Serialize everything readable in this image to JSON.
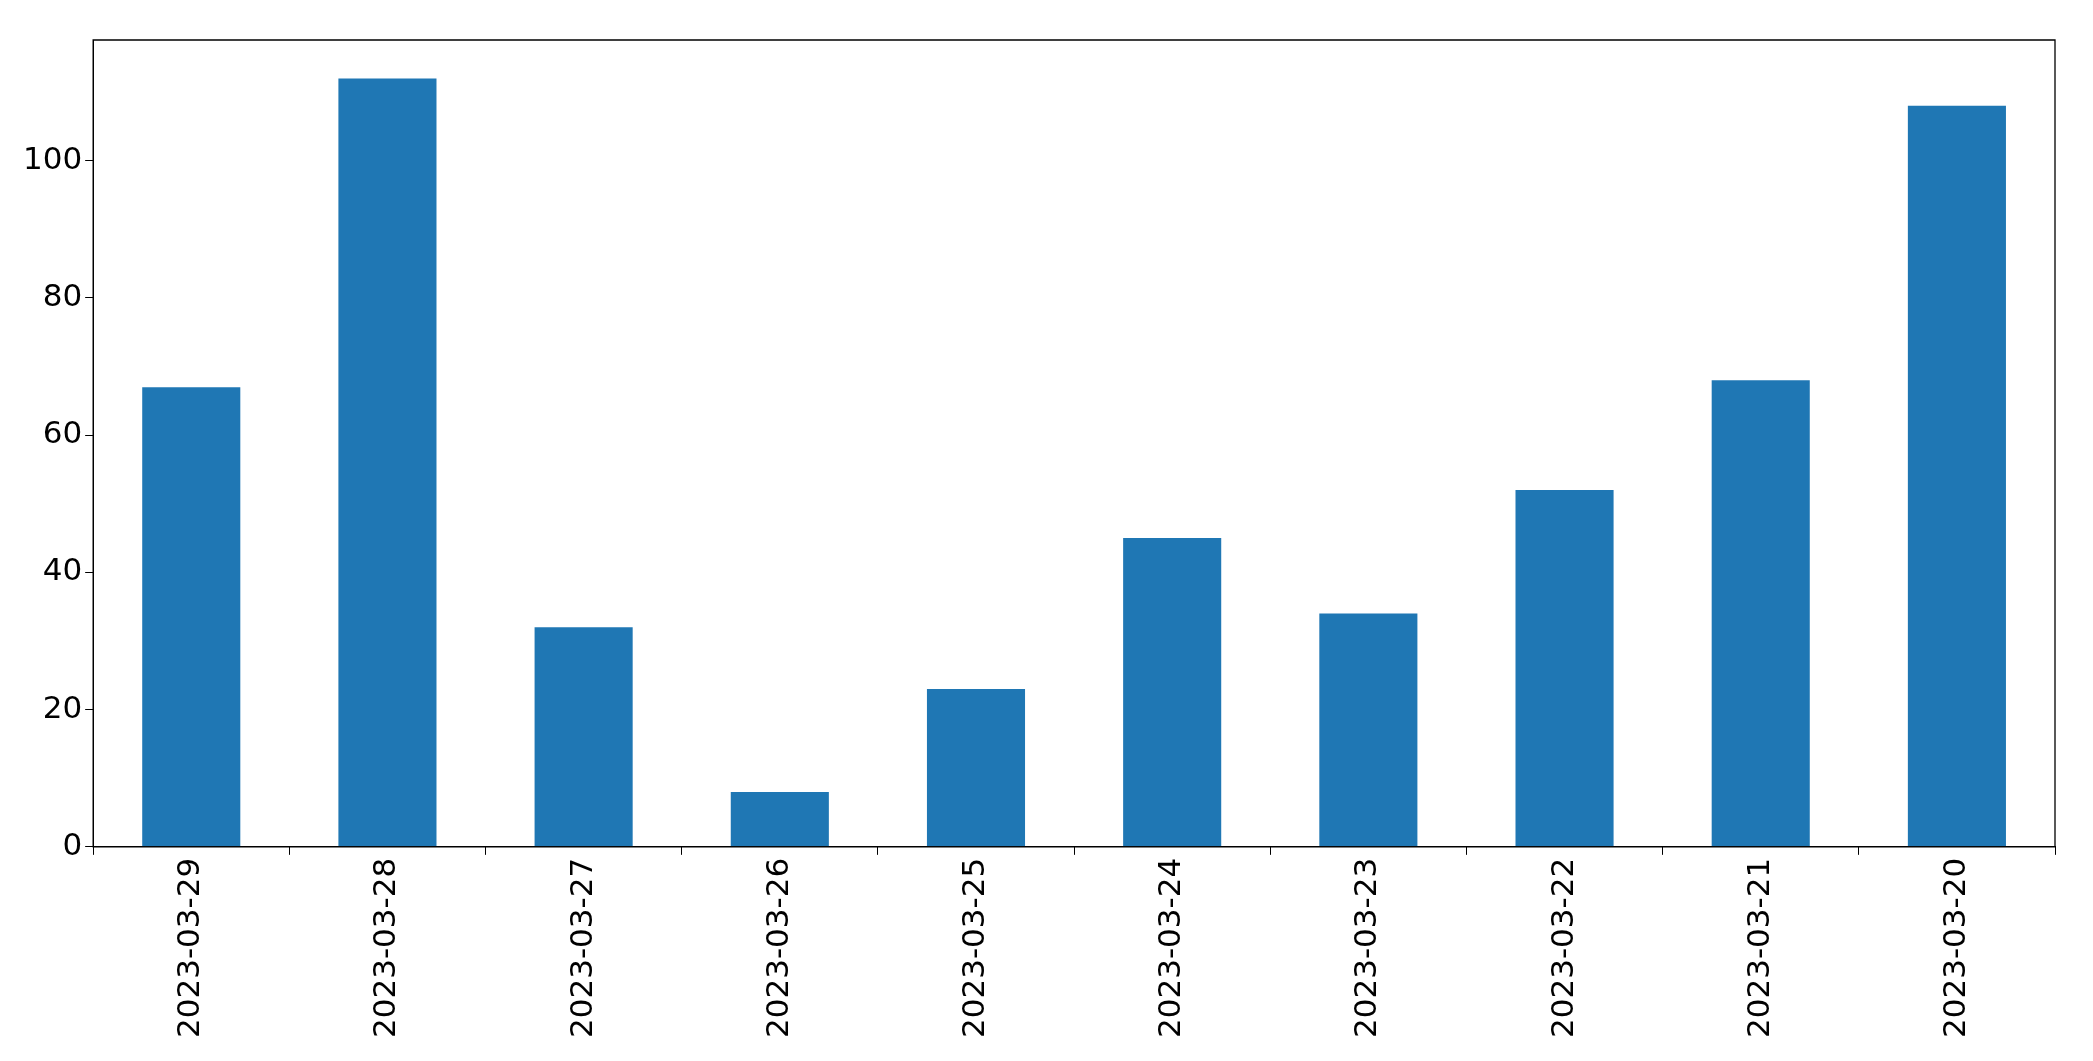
{
  "chart_data": {
    "type": "bar",
    "categories": [
      "2023-03-29",
      "2023-03-28",
      "2023-03-27",
      "2023-03-26",
      "2023-03-25",
      "2023-03-24",
      "2023-03-23",
      "2023-03-22",
      "2023-03-21",
      "2023-03-20"
    ],
    "values": [
      67,
      112,
      32,
      8,
      23,
      45,
      34,
      52,
      68,
      108
    ],
    "color": "#1f77b4",
    "ylim": [
      0,
      117.6
    ],
    "yticks": [
      0,
      20,
      40,
      60,
      80,
      100
    ],
    "grid": false,
    "legend": false
  }
}
